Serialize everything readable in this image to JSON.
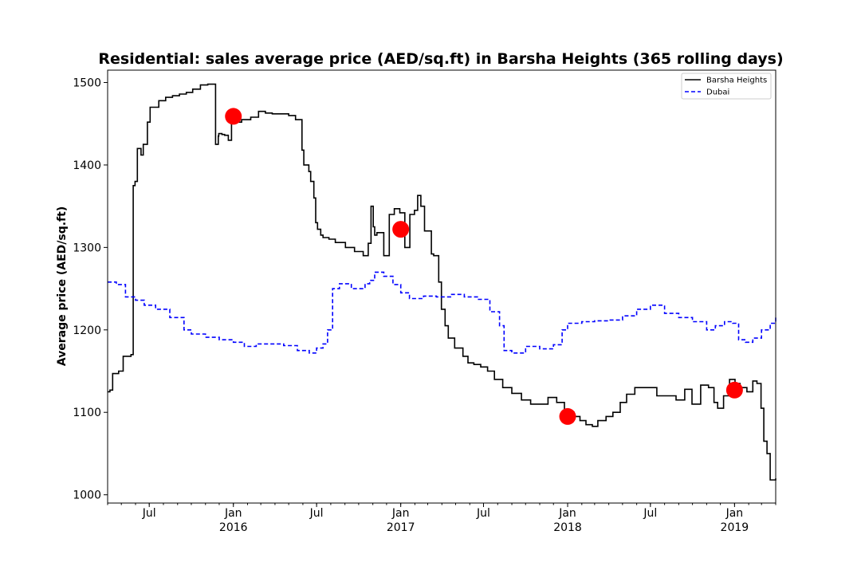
{
  "chart_data": {
    "type": "line",
    "title": "Residential: sales average price (AED/sq.ft) in Barsha Heights (365 rolling days)",
    "xlabel": "",
    "ylabel": "Average price (AED/sq.ft)",
    "xlim": [
      "2015-04-01",
      "2019-04-01"
    ],
    "ylim": [
      990,
      1515
    ],
    "yticks": [
      1000,
      1100,
      1200,
      1300,
      1400,
      1500
    ],
    "xticks": [
      {
        "date": "2015-07-01",
        "label": "Jul",
        "year": ""
      },
      {
        "date": "2016-01-01",
        "label": "Jan",
        "year": "2016"
      },
      {
        "date": "2016-07-01",
        "label": "Jul",
        "year": ""
      },
      {
        "date": "2017-01-01",
        "label": "Jan",
        "year": "2017"
      },
      {
        "date": "2017-07-01",
        "label": "Jul",
        "year": ""
      },
      {
        "date": "2018-01-01",
        "label": "Jan",
        "year": "2018"
      },
      {
        "date": "2018-07-01",
        "label": "Jul",
        "year": ""
      },
      {
        "date": "2019-01-01",
        "label": "Jan",
        "year": "2019"
      }
    ],
    "legend": {
      "position": "top-right"
    },
    "series": [
      {
        "name": "Barsha Heights",
        "color": "#000000",
        "style": "solid",
        "x": [
          "2015-04-01",
          "2015-04-06",
          "2015-04-12",
          "2015-04-25",
          "2015-05-05",
          "2015-05-22",
          "2015-05-27",
          "2015-05-31",
          "2015-06-05",
          "2015-06-13",
          "2015-06-18",
          "2015-06-27",
          "2015-07-03",
          "2015-07-22",
          "2015-08-06",
          "2015-08-21",
          "2015-09-05",
          "2015-09-20",
          "2015-10-04",
          "2015-10-21",
          "2015-11-06",
          "2015-11-23",
          "2015-11-29",
          "2015-11-30",
          "2015-12-07",
          "2015-12-13",
          "2015-12-21",
          "2015-12-28",
          "2015-12-31",
          "2016-01-04",
          "2016-01-19",
          "2016-02-08",
          "2016-02-25",
          "2016-03-11",
          "2016-03-26",
          "2016-04-16",
          "2016-05-01",
          "2016-05-16",
          "2016-05-30",
          "2016-06-03",
          "2016-06-14",
          "2016-06-18",
          "2016-06-25",
          "2016-06-29",
          "2016-07-03",
          "2016-07-10",
          "2016-07-15",
          "2016-07-28",
          "2016-08-11",
          "2016-09-02",
          "2016-09-22",
          "2016-10-11",
          "2016-10-22",
          "2016-10-28",
          "2016-11-02",
          "2016-11-05",
          "2016-11-10",
          "2016-11-25",
          "2016-12-07",
          "2016-12-18",
          "2016-12-30",
          "2017-01-10",
          "2017-01-21",
          "2017-01-31",
          "2017-02-07",
          "2017-02-14",
          "2017-02-22",
          "2017-03-09",
          "2017-03-14",
          "2017-03-25",
          "2017-03-31",
          "2017-04-08",
          "2017-04-15",
          "2017-04-29",
          "2017-05-17",
          "2017-05-28",
          "2017-06-10",
          "2017-06-25",
          "2017-07-10",
          "2017-07-25",
          "2017-08-12",
          "2017-09-01",
          "2017-09-22",
          "2017-10-12",
          "2017-11-01",
          "2017-11-19",
          "2017-12-08",
          "2017-12-25",
          "2018-01-15",
          "2018-01-28",
          "2018-02-10",
          "2018-02-24",
          "2018-03-08",
          "2018-03-26",
          "2018-04-10",
          "2018-04-26",
          "2018-05-10",
          "2018-05-28",
          "2018-06-21",
          "2018-07-15",
          "2018-08-12",
          "2018-08-26",
          "2018-09-14",
          "2018-09-30",
          "2018-10-19",
          "2018-11-05",
          "2018-11-17",
          "2018-11-25",
          "2018-12-08",
          "2018-12-21",
          "2019-01-02",
          "2019-01-13",
          "2019-01-28",
          "2019-02-10",
          "2019-02-19",
          "2019-02-28",
          "2019-03-06",
          "2019-03-13",
          "2019-03-20",
          "2019-04-01"
        ],
        "values": [
          1125,
          1127,
          1147,
          1150,
          1168,
          1170,
          1375,
          1380,
          1420,
          1412,
          1425,
          1452,
          1470,
          1478,
          1482,
          1484,
          1486,
          1488,
          1492,
          1497,
          1498,
          1425,
          1435,
          1438,
          1437,
          1436,
          1430,
          1455,
          1453,
          1452,
          1455,
          1458,
          1465,
          1463,
          1462,
          1462,
          1460,
          1455,
          1418,
          1400,
          1392,
          1380,
          1360,
          1330,
          1322,
          1315,
          1312,
          1310,
          1306,
          1300,
          1295,
          1290,
          1305,
          1350,
          1325,
          1315,
          1318,
          1290,
          1340,
          1347,
          1342,
          1300,
          1340,
          1345,
          1363,
          1350,
          1320,
          1292,
          1290,
          1258,
          1225,
          1205,
          1190,
          1178,
          1168,
          1160,
          1158,
          1155,
          1150,
          1140,
          1130,
          1123,
          1115,
          1110,
          1110,
          1118,
          1112,
          1100,
          1095,
          1090,
          1085,
          1083,
          1090,
          1095,
          1100,
          1112,
          1122,
          1130,
          1130,
          1120,
          1120,
          1115,
          1128,
          1110,
          1133,
          1130,
          1112,
          1105,
          1120,
          1140,
          1135,
          1130,
          1125,
          1138,
          1135,
          1105,
          1065,
          1050,
          1018,
          1020
        ]
      },
      {
        "name": "Dubai",
        "color": "#0000ff",
        "style": "dashed",
        "x": [
          "2015-04-01",
          "2015-04-20",
          "2015-05-10",
          "2015-06-01",
          "2015-06-20",
          "2015-07-15",
          "2015-08-15",
          "2015-09-15",
          "2015-10-01",
          "2015-11-01",
          "2015-12-01",
          "2016-01-01",
          "2016-01-25",
          "2016-02-20",
          "2016-03-20",
          "2016-04-20",
          "2016-05-20",
          "2016-06-15",
          "2016-07-01",
          "2016-07-15",
          "2016-07-25",
          "2016-08-05",
          "2016-08-20",
          "2016-09-15",
          "2016-10-15",
          "2016-10-25",
          "2016-11-05",
          "2016-11-25",
          "2016-12-15",
          "2017-01-01",
          "2017-01-20",
          "2017-02-20",
          "2017-03-20",
          "2017-04-20",
          "2017-05-20",
          "2017-06-20",
          "2017-07-15",
          "2017-08-05",
          "2017-08-15",
          "2017-09-01",
          "2017-10-01",
          "2017-11-01",
          "2017-12-01",
          "2017-12-20",
          "2018-01-01",
          "2018-02-01",
          "2018-03-01",
          "2018-04-01",
          "2018-05-01",
          "2018-06-01",
          "2018-07-01",
          "2018-08-01",
          "2018-09-01",
          "2018-10-01",
          "2018-11-01",
          "2018-11-20",
          "2018-12-10",
          "2018-12-28",
          "2019-01-10",
          "2019-01-25",
          "2019-02-10",
          "2019-03-01",
          "2019-03-20",
          "2019-04-01"
        ],
        "values": [
          1258,
          1255,
          1240,
          1236,
          1230,
          1225,
          1215,
          1200,
          1195,
          1191,
          1188,
          1185,
          1180,
          1183,
          1183,
          1181,
          1175,
          1172,
          1178,
          1183,
          1200,
          1250,
          1256,
          1250,
          1256,
          1260,
          1270,
          1265,
          1255,
          1245,
          1238,
          1241,
          1240,
          1243,
          1240,
          1237,
          1222,
          1205,
          1175,
          1172,
          1180,
          1177,
          1182,
          1200,
          1208,
          1210,
          1211,
          1212,
          1217,
          1225,
          1230,
          1220,
          1215,
          1210,
          1200,
          1205,
          1210,
          1208,
          1188,
          1185,
          1190,
          1200,
          1208,
          1215
        ]
      }
    ],
    "markers": {
      "color": "#ff0000",
      "points": [
        {
          "x": "2016-01-01",
          "y": 1459
        },
        {
          "x": "2017-01-01",
          "y": 1322
        },
        {
          "x": "2018-01-01",
          "y": 1095
        },
        {
          "x": "2019-01-01",
          "y": 1127
        }
      ]
    }
  }
}
